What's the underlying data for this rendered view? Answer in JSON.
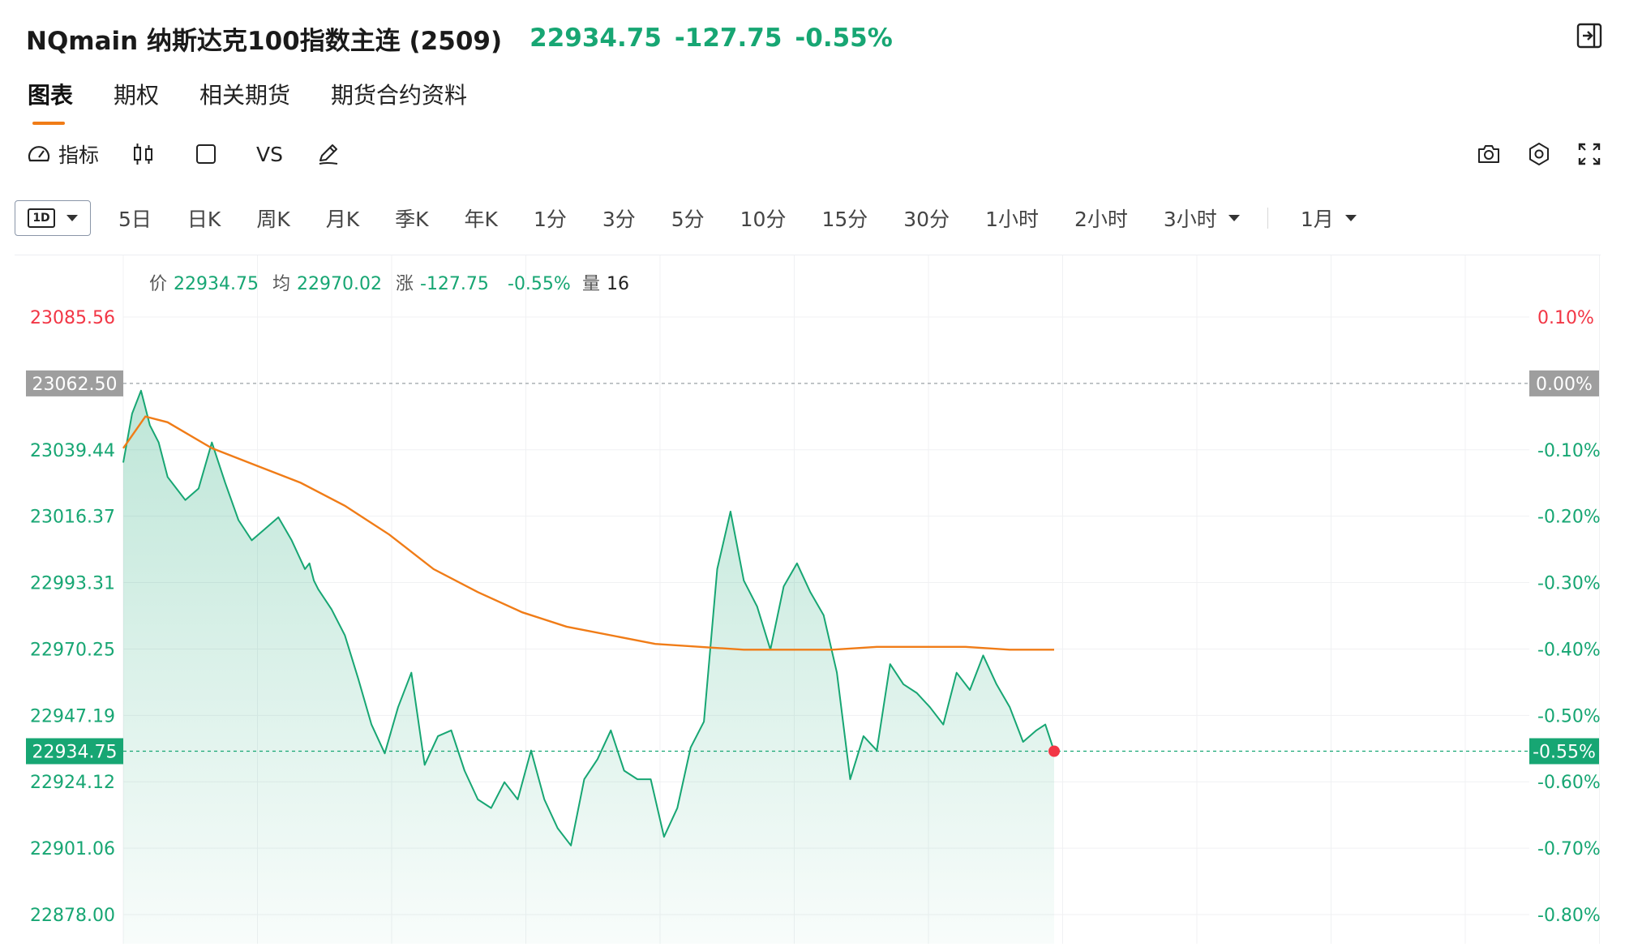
{
  "header": {
    "title": "NQmain 纳斯达克100指数主连 (2509)",
    "price": "22934.75",
    "change": "-127.75",
    "change_pct": "-0.55%"
  },
  "tabs": [
    {
      "label": "图表",
      "active": true
    },
    {
      "label": "期权",
      "active": false
    },
    {
      "label": "相关期货",
      "active": false
    },
    {
      "label": "期货合约资料",
      "active": false
    }
  ],
  "toolbar": {
    "indicator_label": "指标",
    "compare_label": "VS",
    "icons": [
      "gauge-icon",
      "candlestick-icon",
      "square-icon",
      "pen-icon",
      "camera-icon",
      "settings-icon",
      "fullscreen-icon"
    ]
  },
  "intervals": {
    "selected": "1D",
    "items": [
      "5日",
      "日K",
      "周K",
      "月K",
      "季K",
      "年K",
      "1分",
      "3分",
      "5分",
      "10分",
      "15分",
      "30分",
      "1小时",
      "2小时"
    ],
    "dropdown_item": "3小时",
    "month_select": "1月"
  },
  "info_bar": {
    "price_label": "价",
    "price_value": "22934.75",
    "avg_label": "均",
    "avg_value": "22970.02",
    "change_label": "涨",
    "change_value": "-127.75",
    "change_pct_value": "-0.55%",
    "volume_label": "量",
    "volume_value": "16"
  },
  "colors": {
    "up": "#f23645",
    "down": "#17a673",
    "avg_line": "#f07c17",
    "accent": "#f07c17",
    "ref_badge": "#9e9e9e"
  },
  "chart_data": {
    "type": "line",
    "title": "",
    "ylim": [
      22878.0,
      23085.56
    ],
    "reference_price": 23062.5,
    "last_price": 22934.75,
    "y_ticks_left": [
      "23085.56",
      "23039.44",
      "23016.37",
      "22993.31",
      "22970.25",
      "22947.19",
      "22924.12",
      "22901.06",
      "22878.00"
    ],
    "y_ticks_right": [
      "0.10%",
      "-0.10%",
      "-0.20%",
      "-0.30%",
      "-0.40%",
      "-0.50%",
      "-0.60%",
      "-0.70%",
      "-0.80%"
    ],
    "ref_label_left": "23062.50",
    "ref_label_right": "0.00%",
    "last_label_left": "22934.75",
    "last_label_right": "-0.55%",
    "grid": true,
    "series": [
      {
        "name": "价",
        "x": [
          0,
          2,
          4,
          6,
          8,
          10,
          12,
          14,
          17,
          20,
          23,
          26,
          29,
          32,
          35,
          38,
          41,
          42,
          43,
          44,
          47,
          50,
          53,
          56,
          59,
          62,
          65,
          68,
          71,
          74,
          77,
          80,
          83,
          86,
          89,
          92,
          95,
          98,
          101,
          104,
          107,
          110,
          113,
          116,
          119,
          122,
          125,
          128,
          131,
          134,
          137,
          140,
          143,
          146,
          149,
          152,
          155,
          158,
          161,
          164,
          167,
          170,
          173,
          176,
          179,
          182,
          185,
          188,
          191,
          194,
          197,
          200,
          203,
          206,
          208,
          210
        ],
        "values": [
          23035,
          23052,
          23060,
          23048,
          23042,
          23030,
          23026,
          23022,
          23026,
          23042,
          23028,
          23015,
          23008,
          23012,
          23016,
          23008,
          22998,
          23000,
          22994,
          22991,
          22984,
          22975,
          22960,
          22944,
          22934,
          22950,
          22962,
          22930,
          22940,
          22942,
          22928,
          22918,
          22915,
          22924,
          22918,
          22935,
          22918,
          22908,
          22902,
          22925,
          22932,
          22942,
          22928,
          22925,
          22925,
          22905,
          22915,
          22936,
          22945,
          22998,
          23018,
          22994,
          22985,
          22970,
          22992,
          23000,
          22990,
          22982,
          22962,
          22925,
          22940,
          22935,
          22965,
          22958,
          22955,
          22950,
          22944,
          22962,
          22956,
          22968,
          22958,
          22950,
          22938,
          22942,
          22944,
          22934.75
        ]
      },
      {
        "name": "均",
        "x": [
          0,
          5,
          10,
          20,
          30,
          40,
          50,
          60,
          70,
          80,
          90,
          100,
          120,
          140,
          150,
          160,
          170,
          180,
          190,
          200,
          210
        ],
        "values": [
          23040,
          23051,
          23049,
          23040,
          23034,
          23028,
          23020,
          23010,
          22998,
          22990,
          22983,
          22978,
          22972,
          22970,
          22970,
          22970,
          22971,
          22971,
          22971,
          22970,
          22970.02
        ]
      }
    ]
  }
}
